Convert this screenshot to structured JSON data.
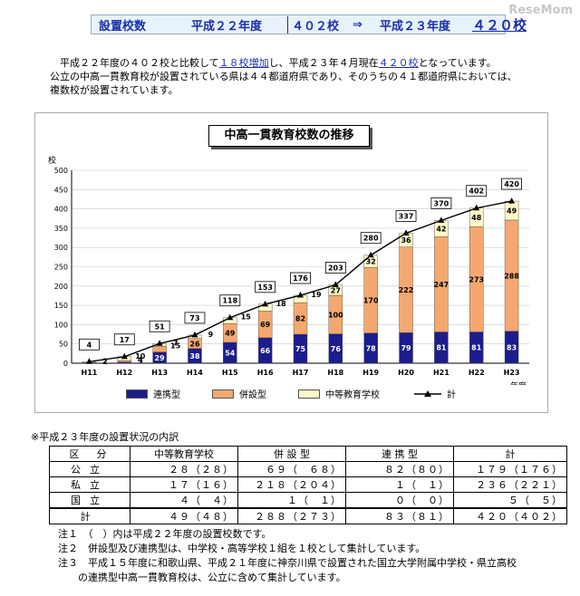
{
  "banner": {
    "label": "設置校数",
    "prev_year": "平成２２年度",
    "prev_count": "４０２校",
    "arrow": "⇒",
    "curr_year": "平成２３年度",
    "curr_count": "４２０校"
  },
  "watermark": "ReseMom",
  "paragraph": {
    "line1_a": "平成２２年度の４０２校と比較して",
    "line1_hl1": "１８校増加",
    "line1_b": "し、平成２３年４月現在",
    "line1_hl2": "４２０校",
    "line1_c": "となっています。",
    "line2": "公立の中高一貫教育校が設置されている県は４４都道府県であり、そのうちの４１都道府県においては、",
    "line3": "複数校が設置されています。"
  },
  "chart_data": {
    "type": "bar",
    "title": "中高一貫教育校数の推移",
    "ylabel": "校",
    "xlabel": "年度",
    "ylim": [
      0,
      500
    ],
    "yticks": [
      "0",
      "50",
      "100",
      "150",
      "200",
      "250",
      "300",
      "350",
      "400",
      "450",
      "500"
    ],
    "categories": [
      "H11",
      "H12",
      "H13",
      "H14",
      "H15",
      "H16",
      "H17",
      "H18",
      "H19",
      "H20",
      "H21",
      "H22",
      "H23"
    ],
    "stacked": true,
    "series": [
      {
        "name": "連携型",
        "color": "#1c1c8c",
        "values": [
          2,
          3,
          29,
          38,
          54,
          66,
          75,
          76,
          78,
          79,
          81,
          81,
          83
        ]
      },
      {
        "name": "併設型",
        "color": "#f4a870",
        "values": [
          0,
          4,
          15,
          26,
          49,
          69,
          82,
          100,
          170,
          222,
          247,
          273,
          288
        ]
      },
      {
        "name": "中等教育学校",
        "color": "#fff8c8",
        "values": [
          2,
          10,
          7,
          9,
          15,
          18,
          19,
          27,
          32,
          36,
          42,
          48,
          49
        ]
      }
    ],
    "labels": {
      "連携型": [
        "2",
        "3",
        "29",
        "38",
        "54",
        "66",
        "75",
        "76",
        "78",
        "79",
        "81",
        "81",
        "83"
      ],
      "併設型": [
        "",
        "4",
        "15",
        "26",
        "49",
        "69",
        "82",
        "100",
        "170",
        "222",
        "247",
        "273",
        "288"
      ],
      "中等教育学校": [
        "2",
        "10",
        "7",
        "9",
        "15",
        "18",
        "19",
        "27",
        "32",
        "36",
        "42",
        "48",
        "49"
      ]
    },
    "total": {
      "name": "計",
      "values": [
        4,
        17,
        51,
        73,
        118,
        153,
        176,
        203,
        280,
        337,
        370,
        402,
        420
      ]
    },
    "legend": [
      "連携型",
      "併設型",
      "中等教育学校",
      "計"
    ],
    "legend_position": "bottom"
  },
  "table": {
    "heading": "※平成２３年度の設置状況の内訳",
    "headers": [
      "区　分",
      "中等教育学校",
      "併 設 型",
      "連 携 型",
      "計"
    ],
    "rows": [
      [
        "公立",
        "２８（２８）",
        "６９（　６８）",
        "８２（８０）",
        "１７９（１７６）"
      ],
      [
        "私立",
        "１７（１６）",
        "２１８（２０４）",
        "１（　１）",
        "２３６（２２１）"
      ],
      [
        "国立",
        "４（　４）",
        "１（　１）",
        "０（　０）",
        "５（　５）"
      ],
      [
        "計",
        "４９（４８）",
        "２８８（２７３）",
        "８３（８１）",
        "４２０（４０２）"
      ]
    ]
  },
  "footnotes": [
    "注１　（　）内は平成２２年度の設置校数です。",
    "注２　併設型及び連携型は、中学校・高等学校１組を１校として集計しています。",
    "注３　平成１５年度に和歌山県、平成２１年度に神奈川県で設置された国立大学附属中学校・県立高校",
    "　　の連携型中高一貫教育校は、公立に含めて集計しています。"
  ]
}
